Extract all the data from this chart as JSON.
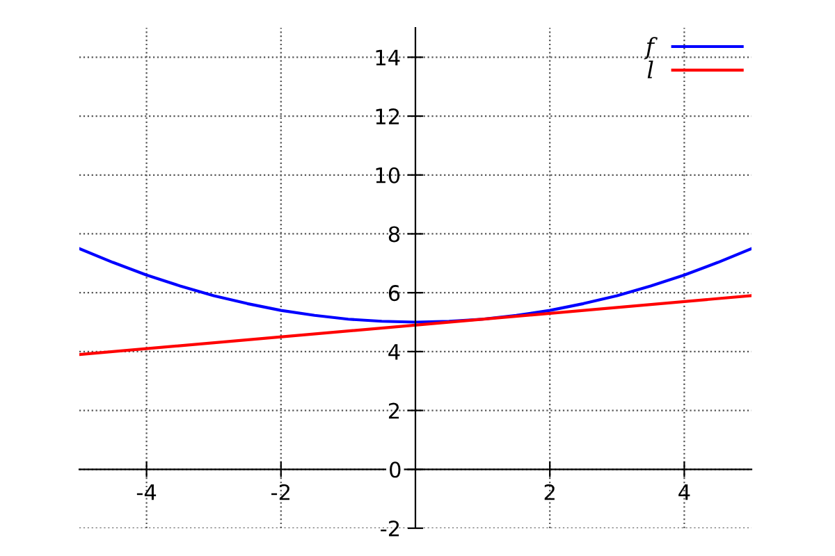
{
  "chart_data": {
    "type": "line",
    "x": [
      -5,
      -4.5,
      -4,
      -3.5,
      -3,
      -2.5,
      -2,
      -1.5,
      -1,
      -0.5,
      0,
      0.5,
      1,
      1.5,
      2,
      2.5,
      3,
      3.5,
      4,
      4.5,
      5
    ],
    "series": [
      {
        "name": "f",
        "color": "#0000ff",
        "values": [
          7.5,
          7.03,
          6.6,
          6.23,
          5.9,
          5.63,
          5.4,
          5.23,
          5.1,
          5.03,
          5,
          5.03,
          5.1,
          5.23,
          5.4,
          5.63,
          5.9,
          6.23,
          6.6,
          7.03,
          7.5
        ]
      },
      {
        "name": "l",
        "color": "#ff0000",
        "x": [
          -5,
          5
        ],
        "values": [
          3.9,
          5.9
        ]
      }
    ],
    "xlim": [
      -5,
      5
    ],
    "ylim": [
      -2,
      15
    ],
    "xticks": [
      -4,
      -2,
      2,
      4
    ],
    "yticks": [
      -2,
      0,
      2,
      4,
      6,
      8,
      10,
      12,
      14
    ],
    "grid": true,
    "legend": "top right",
    "marker": "none",
    "line_style": "solid"
  }
}
